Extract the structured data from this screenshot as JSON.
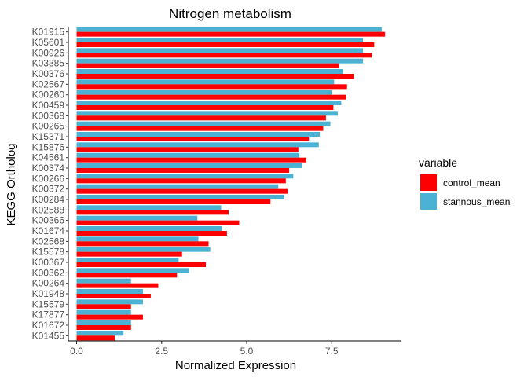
{
  "chart_data": {
    "type": "bar",
    "orientation": "horizontal",
    "title": "Nitrogen metabolism",
    "xlabel": "Normalized Expression",
    "ylabel": "KEGG Ortholog",
    "xlim": [
      0,
      9.5
    ],
    "xticks": [
      0,
      2.5,
      5,
      7.5
    ],
    "xtick_labels": [
      "0.0",
      "2.5",
      "5.0",
      "7.5"
    ],
    "grid": false,
    "legend": {
      "title": "variable",
      "position": "right",
      "entries": [
        "control_mean",
        "stannous_mean"
      ]
    },
    "categories": [
      "K01915",
      "K05601",
      "K00926",
      "K03385",
      "K00376",
      "K02567",
      "K00260",
      "K00459",
      "K00368",
      "K00265",
      "K15371",
      "K15876",
      "K04561",
      "K00374",
      "K00266",
      "K00372",
      "K00284",
      "K02588",
      "K00366",
      "K01674",
      "K02568",
      "K15578",
      "K00367",
      "K00362",
      "K00264",
      "K01948",
      "K15579",
      "K17877",
      "K01672",
      "K01455"
    ],
    "series": [
      {
        "name": "control_mean",
        "color": "#FF0000",
        "values": [
          9.07,
          8.75,
          8.68,
          7.72,
          8.15,
          7.95,
          7.92,
          7.55,
          7.33,
          7.25,
          6.83,
          6.52,
          6.75,
          6.25,
          6.15,
          6.2,
          5.7,
          4.47,
          4.78,
          4.42,
          3.88,
          3.1,
          3.8,
          2.95,
          2.4,
          2.18,
          1.6,
          1.95,
          1.6,
          1.12
        ]
      },
      {
        "name": "stannous_mean",
        "color": "#4BB2D3",
        "values": [
          8.97,
          8.42,
          8.42,
          8.42,
          7.83,
          7.57,
          7.5,
          7.78,
          7.68,
          7.46,
          7.15,
          7.12,
          6.55,
          6.62,
          6.37,
          5.93,
          6.1,
          4.25,
          3.55,
          4.27,
          3.58,
          3.93,
          3.0,
          3.3,
          1.6,
          1.95,
          1.95,
          1.6,
          1.6,
          1.38
        ]
      }
    ]
  }
}
